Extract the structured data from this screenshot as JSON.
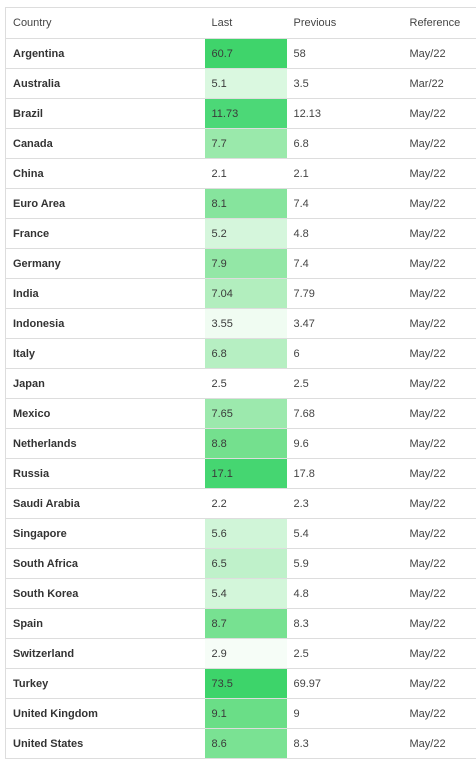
{
  "table": {
    "headers": {
      "country": "Country",
      "last": "Last",
      "previous": "Previous",
      "reference": "Reference"
    },
    "rows": [
      {
        "country": "Argentina",
        "last": "60.7",
        "previous": "58",
        "reference": "May/22",
        "heat_color": "#3fd46b"
      },
      {
        "country": "Australia",
        "last": "5.1",
        "previous": "3.5",
        "reference": "Mar/22",
        "heat_color": "#daf8e0"
      },
      {
        "country": "Brazil",
        "last": "11.73",
        "previous": "12.13",
        "reference": "May/22",
        "heat_color": "#4cd877"
      },
      {
        "country": "Canada",
        "last": "7.7",
        "previous": "6.8",
        "reference": "May/22",
        "heat_color": "#9ae9ab"
      },
      {
        "country": "China",
        "last": "2.1",
        "previous": "2.1",
        "reference": "May/22",
        "heat_color": "#ffffff"
      },
      {
        "country": "Euro Area",
        "last": "8.1",
        "previous": "7.4",
        "reference": "May/22",
        "heat_color": "#86e49d"
      },
      {
        "country": "France",
        "last": "5.2",
        "previous": "4.8",
        "reference": "May/22",
        "heat_color": "#d5f6dc"
      },
      {
        "country": "Germany",
        "last": "7.9",
        "previous": "7.4",
        "reference": "May/22",
        "heat_color": "#93e7a6"
      },
      {
        "country": "India",
        "last": "7.04",
        "previous": "7.79",
        "reference": "May/22",
        "heat_color": "#b2eebe"
      },
      {
        "country": "Indonesia",
        "last": "3.55",
        "previous": "3.47",
        "reference": "May/22",
        "heat_color": "#f0fcf2"
      },
      {
        "country": "Italy",
        "last": "6.8",
        "previous": "6",
        "reference": "May/22",
        "heat_color": "#b6efc2"
      },
      {
        "country": "Japan",
        "last": "2.5",
        "previous": "2.5",
        "reference": "May/22",
        "heat_color": "#ffffff"
      },
      {
        "country": "Mexico",
        "last": "7.65",
        "previous": "7.68",
        "reference": "May/22",
        "heat_color": "#9ce9ad"
      },
      {
        "country": "Netherlands",
        "last": "8.8",
        "previous": "9.6",
        "reference": "May/22",
        "heat_color": "#74e08e"
      },
      {
        "country": "Russia",
        "last": "17.1",
        "previous": "17.8",
        "reference": "May/22",
        "heat_color": "#45d671"
      },
      {
        "country": "Saudi Arabia",
        "last": "2.2",
        "previous": "2.3",
        "reference": "May/22",
        "heat_color": "#ffffff"
      },
      {
        "country": "Singapore",
        "last": "5.6",
        "previous": "5.4",
        "reference": "May/22",
        "heat_color": "#d0f5d8"
      },
      {
        "country": "South Africa",
        "last": "6.5",
        "previous": "5.9",
        "reference": "May/22",
        "heat_color": "#bff1ca"
      },
      {
        "country": "South Korea",
        "last": "5.4",
        "previous": "4.8",
        "reference": "May/22",
        "heat_color": "#d3f6da"
      },
      {
        "country": "Spain",
        "last": "8.7",
        "previous": "8.3",
        "reference": "May/22",
        "heat_color": "#77e191"
      },
      {
        "country": "Switzerland",
        "last": "2.9",
        "previous": "2.5",
        "reference": "May/22",
        "heat_color": "#f6fdf7"
      },
      {
        "country": "Turkey",
        "last": "73.5",
        "previous": "69.97",
        "reference": "May/22",
        "heat_color": "#3dd46a"
      },
      {
        "country": "United Kingdom",
        "last": "9.1",
        "previous": "9",
        "reference": "May/22",
        "heat_color": "#6ade87"
      },
      {
        "country": "United States",
        "last": "8.6",
        "previous": "8.3",
        "reference": "May/22",
        "heat_color": "#7ae293"
      }
    ]
  }
}
